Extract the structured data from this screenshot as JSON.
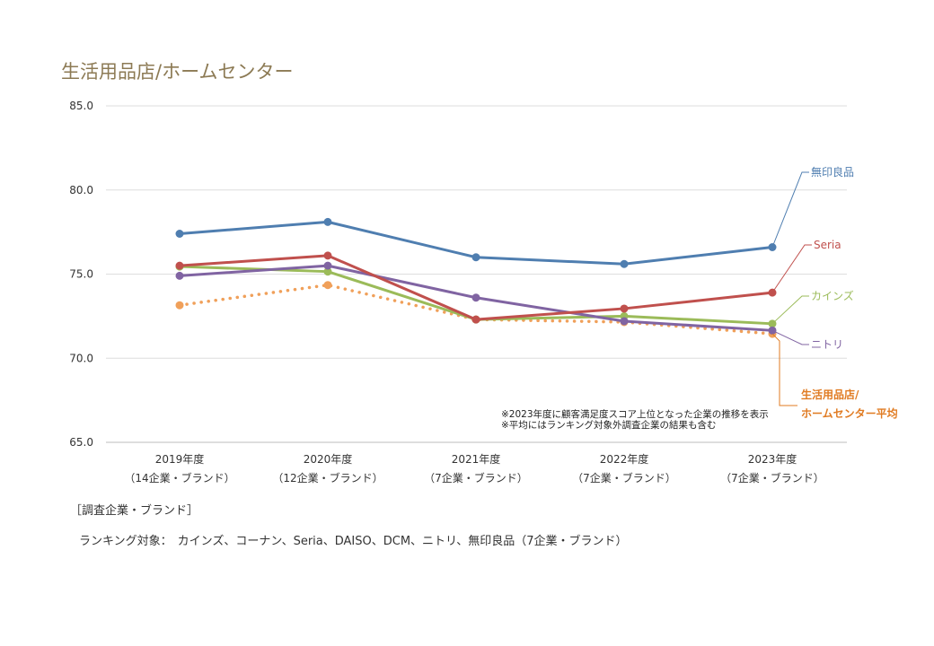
{
  "chart_data": {
    "type": "line",
    "title": "生活用品店/ホームセンター",
    "categories": [
      "2019年度",
      "2020年度",
      "2021年度",
      "2022年度",
      "2023年度"
    ],
    "category_sublabels": [
      "（14企業・ブランド）",
      "（12企業・ブランド）",
      "（7企業・ブランド）",
      "（7企業・ブランド）",
      "（7企業・ブランド）"
    ],
    "ylim": [
      65.0,
      85.0
    ],
    "yticks": [
      "85.0",
      "80.0",
      "75.0",
      "70.0",
      "65.0"
    ],
    "grid": true,
    "xlabel": "",
    "ylabel": "",
    "series": [
      {
        "name": "無印良品",
        "color": "#4f7eb0",
        "dashed": false,
        "values": [
          77.4,
          78.1,
          76.0,
          75.6,
          76.6
        ]
      },
      {
        "name": "Seria",
        "color": "#c0504d",
        "dashed": false,
        "values": [
          75.5,
          76.1,
          72.3,
          72.95,
          73.9
        ]
      },
      {
        "name": "カインズ",
        "color": "#9bbb59",
        "dashed": false,
        "values": [
          75.45,
          75.15,
          72.3,
          72.5,
          72.05
        ]
      },
      {
        "name": "ニトリ",
        "color": "#8064a2",
        "dashed": false,
        "values": [
          74.9,
          75.5,
          73.6,
          72.2,
          71.65
        ]
      },
      {
        "name": "生活用品店/ホームセンター平均",
        "label_lines": [
          "生活用品店/",
          "ホームセンター平均"
        ],
        "color": "#f0a05a",
        "label_color": "#e07b22",
        "dashed": true,
        "values": [
          73.15,
          74.35,
          72.3,
          72.15,
          71.45
        ]
      }
    ],
    "notes": [
      "※2023年度に顧客満足度スコア上位となった企業の推移を表示",
      "※平均にはランキング対象外調査企業の結果も含む"
    ]
  },
  "survey": {
    "header": "［調査企業・ブランド］",
    "prefix": "ランキング対象：",
    "brands": "カインズ、コーナン、Seria、DAISO、DCM、ニトリ、無印良品（7企業・ブランド）"
  }
}
